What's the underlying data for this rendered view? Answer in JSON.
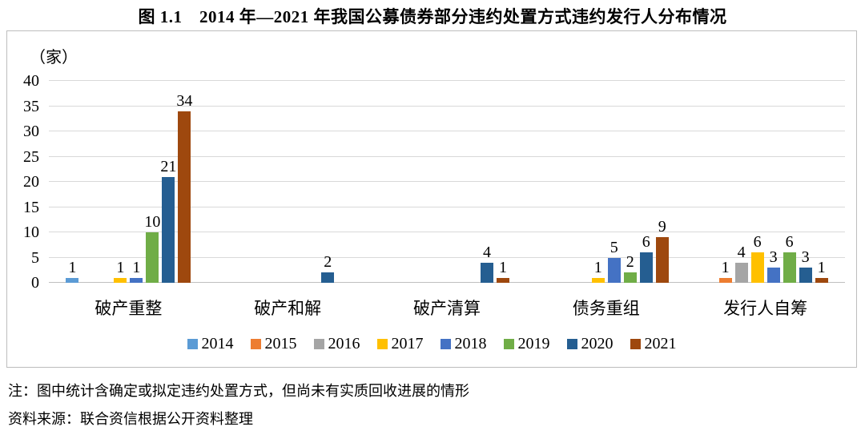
{
  "title": "图 1.1　2014 年—2021 年我国公募债券部分违约处置方式违约发行人分布情况",
  "notes": {
    "note": "注：图中统计含确定或拟定违约处置方式，但尚未有实质回收进展的情形",
    "source": "资料来源：联合资信根据公开资料整理"
  },
  "chart_data": {
    "type": "bar",
    "title": "图 1.1　2014 年—2021 年我国公募债券部分违约处置方式违约发行人分布情况",
    "unit_label": "（家）",
    "xlabel": "",
    "ylabel": "（家）",
    "categories": [
      "破产重整",
      "破产和解",
      "破产清算",
      "债务重组",
      "发行人自筹"
    ],
    "series": [
      {
        "name": "2014",
        "color": "#5B9BD5",
        "values": [
          1,
          0,
          0,
          0,
          0
        ]
      },
      {
        "name": "2015",
        "color": "#ED7D31",
        "values": [
          0,
          0,
          0,
          0,
          1
        ]
      },
      {
        "name": "2016",
        "color": "#A5A5A5",
        "values": [
          0,
          0,
          0,
          0,
          4
        ]
      },
      {
        "name": "2017",
        "color": "#FFC000",
        "values": [
          1,
          0,
          0,
          1,
          6
        ]
      },
      {
        "name": "2018",
        "color": "#4472C4",
        "values": [
          1,
          0,
          0,
          5,
          3
        ]
      },
      {
        "name": "2019",
        "color": "#70AD47",
        "values": [
          10,
          0,
          0,
          2,
          6
        ]
      },
      {
        "name": "2020",
        "color": "#255E91",
        "values": [
          21,
          2,
          4,
          6,
          3
        ]
      },
      {
        "name": "2021",
        "color": "#9E480E",
        "values": [
          34,
          0,
          1,
          9,
          1
        ]
      }
    ],
    "ylim": [
      0,
      40
    ],
    "ytick_step": 5,
    "grid": true,
    "legend_position": "bottom",
    "show_value_labels": true
  }
}
